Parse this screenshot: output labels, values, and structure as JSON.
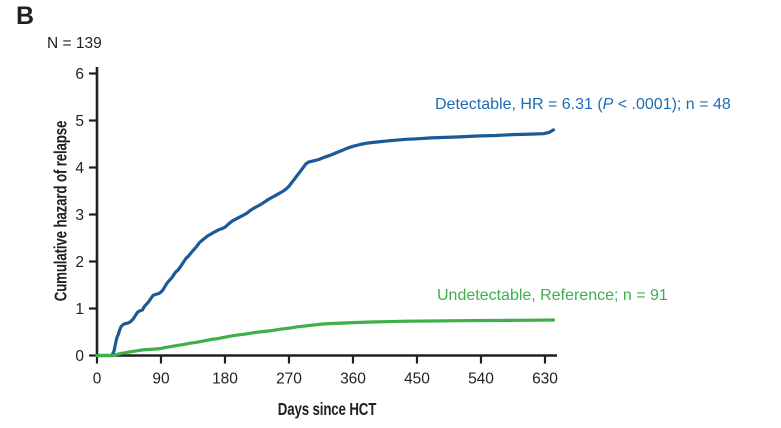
{
  "panel_label": "B",
  "sample_size_label": "N = 139",
  "sample_size": 139,
  "colors": {
    "background": "#ffffff",
    "axis": "#231f20",
    "text": "#231f20",
    "detectable_line": "#1a5a96",
    "detectable_text": "#1e6cb5",
    "undetectable_line": "#3db04c",
    "undetectable_text": "#3db04c"
  },
  "chart_data": {
    "type": "line",
    "title": "",
    "xlabel": "Days since HCT",
    "ylabel": "Cumulative hazard of relapse",
    "xlim": [
      0,
      648
    ],
    "ylim": [
      0,
      6
    ],
    "xticks": [
      0,
      90,
      180,
      270,
      360,
      450,
      540,
      630
    ],
    "yticks": [
      0,
      1,
      2,
      3,
      4,
      5,
      6
    ],
    "grid": false,
    "legend_position": "inline-annotations",
    "series": [
      {
        "name": "Detectable",
        "n": 48,
        "hazard_ratio": "6.31",
        "p_value": "< .0001",
        "label": "Detectable, HR = 6.31 (P < .0001); n = 48",
        "label_parts": [
          "Detectable, HR = 6.31 (",
          "P",
          " < .0001); n = 48"
        ],
        "color": "#1a5a96",
        "points": [
          [
            0,
            0
          ],
          [
            21,
            0
          ],
          [
            24,
            0.1
          ],
          [
            26,
            0.25
          ],
          [
            28,
            0.38
          ],
          [
            30,
            0.45
          ],
          [
            32,
            0.55
          ],
          [
            34,
            0.62
          ],
          [
            37,
            0.66
          ],
          [
            40,
            0.68
          ],
          [
            44,
            0.69
          ],
          [
            48,
            0.73
          ],
          [
            51,
            0.78
          ],
          [
            54,
            0.85
          ],
          [
            57,
            0.92
          ],
          [
            60,
            0.95
          ],
          [
            64,
            0.97
          ],
          [
            67,
            1.05
          ],
          [
            70,
            1.1
          ],
          [
            73,
            1.15
          ],
          [
            76,
            1.22
          ],
          [
            79,
            1.28
          ],
          [
            83,
            1.3
          ],
          [
            87,
            1.32
          ],
          [
            90,
            1.35
          ],
          [
            93,
            1.4
          ],
          [
            96,
            1.48
          ],
          [
            99,
            1.55
          ],
          [
            102,
            1.6
          ],
          [
            105,
            1.65
          ],
          [
            108,
            1.72
          ],
          [
            111,
            1.78
          ],
          [
            114,
            1.82
          ],
          [
            117,
            1.88
          ],
          [
            120,
            1.95
          ],
          [
            123,
            2.02
          ],
          [
            126,
            2.08
          ],
          [
            129,
            2.12
          ],
          [
            132,
            2.18
          ],
          [
            136,
            2.25
          ],
          [
            140,
            2.32
          ],
          [
            144,
            2.4
          ],
          [
            148,
            2.45
          ],
          [
            152,
            2.5
          ],
          [
            156,
            2.55
          ],
          [
            160,
            2.58
          ],
          [
            164,
            2.62
          ],
          [
            168,
            2.65
          ],
          [
            172,
            2.68
          ],
          [
            176,
            2.7
          ],
          [
            180,
            2.73
          ],
          [
            185,
            2.8
          ],
          [
            190,
            2.86
          ],
          [
            195,
            2.9
          ],
          [
            200,
            2.94
          ],
          [
            205,
            2.98
          ],
          [
            210,
            3.02
          ],
          [
            215,
            3.08
          ],
          [
            220,
            3.13
          ],
          [
            225,
            3.17
          ],
          [
            230,
            3.21
          ],
          [
            236,
            3.27
          ],
          [
            242,
            3.33
          ],
          [
            248,
            3.38
          ],
          [
            254,
            3.43
          ],
          [
            260,
            3.48
          ],
          [
            265,
            3.53
          ],
          [
            270,
            3.6
          ],
          [
            274,
            3.68
          ],
          [
            278,
            3.76
          ],
          [
            282,
            3.84
          ],
          [
            286,
            3.92
          ],
          [
            290,
            4.0
          ],
          [
            294,
            4.08
          ],
          [
            298,
            4.12
          ],
          [
            304,
            4.14
          ],
          [
            312,
            4.17
          ],
          [
            320,
            4.22
          ],
          [
            328,
            4.26
          ],
          [
            336,
            4.31
          ],
          [
            344,
            4.36
          ],
          [
            352,
            4.41
          ],
          [
            360,
            4.45
          ],
          [
            370,
            4.49
          ],
          [
            380,
            4.52
          ],
          [
            392,
            4.54
          ],
          [
            405,
            4.56
          ],
          [
            420,
            4.58
          ],
          [
            435,
            4.6
          ],
          [
            450,
            4.61
          ],
          [
            470,
            4.63
          ],
          [
            490,
            4.64
          ],
          [
            510,
            4.65
          ],
          [
            535,
            4.67
          ],
          [
            560,
            4.68
          ],
          [
            585,
            4.7
          ],
          [
            610,
            4.71
          ],
          [
            628,
            4.72
          ],
          [
            636,
            4.75
          ],
          [
            642,
            4.8
          ]
        ]
      },
      {
        "name": "Undetectable",
        "n": 91,
        "role": "Reference",
        "label": "Undetectable, Reference; n = 91",
        "color": "#3db04c",
        "points": [
          [
            0,
            0
          ],
          [
            23,
            0
          ],
          [
            27,
            0.02
          ],
          [
            33,
            0.04
          ],
          [
            40,
            0.06
          ],
          [
            48,
            0.08
          ],
          [
            56,
            0.1
          ],
          [
            64,
            0.12
          ],
          [
            75,
            0.13
          ],
          [
            85,
            0.14
          ],
          [
            90,
            0.15
          ],
          [
            96,
            0.17
          ],
          [
            104,
            0.19
          ],
          [
            112,
            0.21
          ],
          [
            120,
            0.23
          ],
          [
            130,
            0.26
          ],
          [
            140,
            0.28
          ],
          [
            150,
            0.31
          ],
          [
            160,
            0.34
          ],
          [
            170,
            0.36
          ],
          [
            180,
            0.39
          ],
          [
            190,
            0.42
          ],
          [
            200,
            0.44
          ],
          [
            210,
            0.46
          ],
          [
            222,
            0.49
          ],
          [
            234,
            0.51
          ],
          [
            246,
            0.53
          ],
          [
            258,
            0.56
          ],
          [
            270,
            0.58
          ],
          [
            282,
            0.61
          ],
          [
            294,
            0.63
          ],
          [
            306,
            0.65
          ],
          [
            318,
            0.67
          ],
          [
            330,
            0.68
          ],
          [
            345,
            0.69
          ],
          [
            360,
            0.7
          ],
          [
            380,
            0.71
          ],
          [
            405,
            0.72
          ],
          [
            435,
            0.73
          ],
          [
            470,
            0.735
          ],
          [
            510,
            0.74
          ],
          [
            550,
            0.745
          ],
          [
            595,
            0.75
          ],
          [
            642,
            0.755
          ]
        ]
      }
    ]
  }
}
